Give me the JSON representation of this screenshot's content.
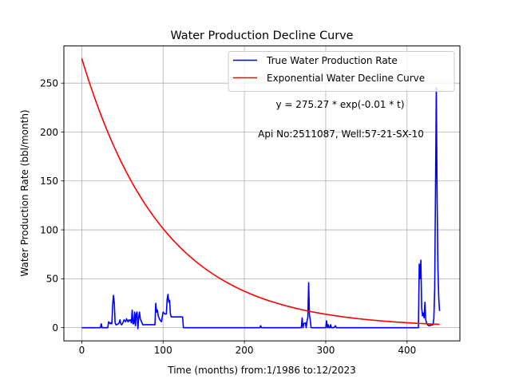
{
  "chart_data": {
    "type": "line",
    "title": "Water Production Decline Curve",
    "xlabel": "Time (months) from:1/1986 to:12/2023",
    "ylabel": "Water Production Rate (bbl/month)",
    "xlim": [
      -22,
      465
    ],
    "ylim": [
      -13.5,
      288
    ],
    "xticks": [
      0,
      100,
      200,
      300,
      400
    ],
    "yticks": [
      0,
      50,
      100,
      150,
      200,
      250
    ],
    "grid": true,
    "legend_position": "top-right",
    "annotations": [
      "y = 275.27 * exp(-0.01 * t)",
      "Api No:2511087, Well:57-21-SX-10"
    ],
    "series": [
      {
        "name": "True Water Production Rate",
        "color": "#0000ff",
        "points": [
          [
            0,
            0
          ],
          [
            23,
            0
          ],
          [
            24,
            4
          ],
          [
            25,
            0
          ],
          [
            32,
            0
          ],
          [
            33,
            6
          ],
          [
            34,
            5
          ],
          [
            35,
            4
          ],
          [
            36,
            5
          ],
          [
            37,
            4
          ],
          [
            38,
            23
          ],
          [
            39,
            33
          ],
          [
            40,
            25
          ],
          [
            41,
            5
          ],
          [
            42,
            3
          ],
          [
            43,
            3
          ],
          [
            45,
            4
          ],
          [
            46,
            5
          ],
          [
            47,
            8
          ],
          [
            48,
            4
          ],
          [
            49,
            3
          ],
          [
            50,
            4
          ],
          [
            52,
            8
          ],
          [
            54,
            6
          ],
          [
            55,
            9
          ],
          [
            57,
            6
          ],
          [
            58,
            8
          ],
          [
            59,
            7
          ],
          [
            60,
            8
          ],
          [
            61,
            5
          ],
          [
            62,
            18
          ],
          [
            63,
            4
          ],
          [
            64,
            4
          ],
          [
            65,
            16
          ],
          [
            66,
            2
          ],
          [
            67,
            14
          ],
          [
            68,
            16
          ],
          [
            69,
            -1
          ],
          [
            70,
            10
          ],
          [
            71,
            16
          ],
          [
            72,
            9
          ],
          [
            73,
            7
          ],
          [
            75,
            3
          ],
          [
            80,
            3
          ],
          [
            85,
            3
          ],
          [
            90,
            3
          ],
          [
            91,
            25
          ],
          [
            92,
            16
          ],
          [
            93,
            18
          ],
          [
            94,
            12
          ],
          [
            95,
            10
          ],
          [
            96,
            8
          ],
          [
            98,
            6
          ],
          [
            100,
            16
          ],
          [
            102,
            14
          ],
          [
            103,
            14
          ],
          [
            104,
            14
          ],
          [
            105,
            29
          ],
          [
            106,
            34
          ],
          [
            107,
            26
          ],
          [
            108,
            28
          ],
          [
            109,
            14
          ],
          [
            110,
            11
          ],
          [
            112,
            11
          ],
          [
            114,
            11
          ],
          [
            124,
            11
          ],
          [
            125,
            0
          ],
          [
            130,
            0
          ],
          [
            200,
            0
          ],
          [
            219,
            0
          ],
          [
            220,
            2
          ],
          [
            221,
            0
          ],
          [
            270,
            0
          ],
          [
            271,
            10
          ],
          [
            272,
            0
          ],
          [
            273,
            4
          ],
          [
            275,
            5
          ],
          [
            276,
            0
          ],
          [
            277,
            7
          ],
          [
            278,
            10
          ],
          [
            279,
            46
          ],
          [
            280,
            13
          ],
          [
            281,
            8
          ],
          [
            282,
            0
          ],
          [
            300,
            0
          ],
          [
            301,
            7
          ],
          [
            302,
            0
          ],
          [
            303,
            3
          ],
          [
            304,
            0
          ],
          [
            305,
            0
          ],
          [
            306,
            3
          ],
          [
            307,
            0
          ],
          [
            310,
            0
          ],
          [
            312,
            2
          ],
          [
            313,
            0
          ],
          [
            380,
            0
          ],
          [
            414,
            0
          ],
          [
            415,
            65
          ],
          [
            416,
            50
          ],
          [
            417,
            69
          ],
          [
            418,
            20
          ],
          [
            419,
            12
          ],
          [
            420,
            15
          ],
          [
            421,
            10
          ],
          [
            422,
            26
          ],
          [
            423,
            8
          ],
          [
            424,
            5
          ],
          [
            425,
            3
          ],
          [
            427,
            2
          ],
          [
            432,
            3
          ],
          [
            433,
            10
          ],
          [
            434,
            40
          ],
          [
            435,
            140
          ],
          [
            436,
            245
          ],
          [
            437,
            130
          ],
          [
            438,
            60
          ],
          [
            439,
            30
          ],
          [
            440,
            17
          ]
        ]
      },
      {
        "name": "Exponential Water Decline Curve",
        "color": "#ff0000",
        "function": "275.27 * exp(-0.01 * t)",
        "x_range": [
          0,
          440
        ]
      }
    ]
  }
}
